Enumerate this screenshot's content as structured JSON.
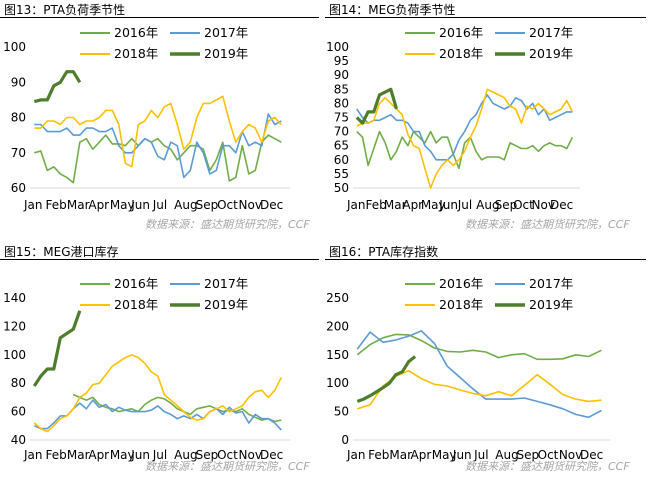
{
  "figures": [
    {
      "title": "图13：PTA负荷季节性",
      "source": "数据来源：盛达期货研究院，CCF"
    },
    {
      "title": "图14：MEG负荷季节性",
      "source": "数据来源：盛达期货研究院，CCF"
    },
    {
      "title": "图15：MEG港口库存",
      "source": "数据来源：盛达期货研究院，CCF"
    },
    {
      "title": "图16：PTA库存指数",
      "source": "数据来源：盛达期货研究院，CCF"
    }
  ],
  "colors": {
    "2016": "#70ad47",
    "2017": "#5b9bd5",
    "2018": "#ffc000",
    "2019": "#4e7d2c"
  },
  "chart_data": [
    {
      "type": "line",
      "title": "图13：PTA负荷季节性",
      "ylim": [
        60,
        100
      ],
      "yticks": [
        60,
        70,
        80,
        90,
        100
      ],
      "xlim": [
        0,
        12
      ],
      "x_categories": [
        "Jan",
        "Feb",
        "Mar",
        "Apr",
        "May",
        "Jun",
        "Jul",
        "Aug",
        "Sep",
        "Oct",
        "Nov",
        "Dec"
      ],
      "legend": "top",
      "series": [
        {
          "name": "2016年",
          "x": [
            0.2,
            0.5,
            0.8,
            1.1,
            1.4,
            1.7,
            2.0,
            2.3,
            2.6,
            2.9,
            3.2,
            3.5,
            3.8,
            4.1,
            4.4,
            4.7,
            5.0,
            5.3,
            5.6,
            5.9,
            6.2,
            6.5,
            6.8,
            7.1,
            7.4,
            7.7,
            8.0,
            8.3,
            8.6,
            8.9,
            9.2,
            9.5,
            9.8,
            10.1,
            10.4,
            10.7,
            11.0,
            11.3,
            11.6
          ],
          "y": [
            70,
            70.5,
            65,
            66,
            64,
            63,
            61.5,
            73,
            74,
            71,
            73,
            75,
            72.5,
            72.5,
            72,
            74,
            72,
            74,
            73,
            74,
            72,
            71,
            68,
            70,
            72,
            72,
            71,
            65,
            68,
            73,
            62,
            63,
            72,
            64,
            65,
            73,
            75,
            74,
            73
          ]
        },
        {
          "name": "2017年",
          "x": [
            0.2,
            0.5,
            0.8,
            1.1,
            1.4,
            1.7,
            2.0,
            2.3,
            2.6,
            2.9,
            3.2,
            3.5,
            3.8,
            4.1,
            4.4,
            4.7,
            5.0,
            5.3,
            5.6,
            5.9,
            6.2,
            6.5,
            6.8,
            7.1,
            7.4,
            7.7,
            8.0,
            8.3,
            8.6,
            8.9,
            9.2,
            9.5,
            9.8,
            10.1,
            10.4,
            10.7,
            11.0,
            11.3,
            11.6
          ],
          "y": [
            78,
            78,
            76,
            76,
            76,
            77,
            75,
            75,
            77,
            77,
            76,
            76,
            77,
            72,
            70,
            70,
            72,
            74,
            73,
            69,
            68,
            73,
            72,
            63,
            65,
            73,
            70,
            64,
            65,
            72,
            72,
            70,
            76,
            72,
            73,
            72,
            81,
            78,
            79
          ]
        },
        {
          "name": "2018年",
          "x": [
            0.2,
            0.5,
            0.8,
            1.1,
            1.4,
            1.7,
            2.0,
            2.3,
            2.6,
            2.9,
            3.2,
            3.5,
            3.8,
            4.1,
            4.4,
            4.7,
            5.0,
            5.3,
            5.6,
            5.9,
            6.2,
            6.5,
            6.8,
            7.1,
            7.4,
            7.7,
            8.0,
            8.3,
            8.6,
            8.9,
            9.2,
            9.5,
            9.8,
            10.1,
            10.4,
            10.7,
            11.0,
            11.3,
            11.6
          ],
          "y": [
            77,
            77,
            79,
            79,
            78,
            80,
            80,
            78,
            79,
            79,
            80,
            82,
            82,
            78,
            67,
            66,
            78,
            79,
            82,
            80,
            83,
            84,
            78,
            71,
            73,
            80,
            84,
            84,
            85,
            86,
            79,
            73,
            76,
            78,
            77,
            73,
            79,
            80,
            78
          ]
        },
        {
          "name": "2019年",
          "x": [
            0.2,
            0.5,
            0.8,
            1.1,
            1.4,
            1.7,
            2.0,
            2.3
          ],
          "y": [
            84.5,
            85,
            85,
            89,
            90,
            93,
            93,
            90
          ]
        }
      ]
    },
    {
      "type": "line",
      "title": "图14：MEG负荷季节性",
      "ylim": [
        50,
        100
      ],
      "yticks": [
        50,
        55,
        60,
        65,
        70,
        75,
        80,
        85,
        90,
        95,
        100
      ],
      "xlim": [
        0,
        12
      ],
      "x_categories": [
        "Jan",
        "Feb",
        "Mar",
        "Apr",
        "May",
        "Jun",
        "Jul",
        "Aug",
        "Sep",
        "Oct",
        "Nov",
        "Dec"
      ],
      "legend": "top",
      "series": [
        {
          "name": "2016年",
          "x": [
            0.2,
            0.5,
            0.8,
            1.1,
            1.4,
            1.7,
            2.0,
            2.3,
            2.6,
            2.9,
            3.2,
            3.5,
            3.8,
            4.1,
            4.4,
            4.7,
            5.0,
            5.3,
            5.6,
            5.9,
            6.2,
            6.5,
            6.8,
            7.1,
            7.4,
            7.7,
            8.0,
            8.3,
            8.6,
            8.9,
            9.2,
            9.5,
            9.8,
            10.1,
            10.4,
            10.7,
            11.0,
            11.3,
            11.6
          ],
          "y": [
            70,
            68,
            58,
            64,
            70,
            66,
            60,
            63,
            68,
            65,
            70,
            68,
            66,
            70,
            66,
            68,
            68,
            62,
            57,
            66,
            68,
            63,
            60,
            61,
            61,
            61,
            60,
            66,
            65,
            64,
            64,
            65,
            63,
            65,
            66,
            65,
            65,
            64,
            68
          ]
        },
        {
          "name": "2017年",
          "x": [
            0.2,
            0.5,
            0.8,
            1.1,
            1.4,
            1.7,
            2.0,
            2.3,
            2.6,
            2.9,
            3.2,
            3.5,
            3.8,
            4.1,
            4.4,
            4.7,
            5.0,
            5.3,
            5.6,
            5.9,
            6.2,
            6.5,
            6.8,
            7.1,
            7.4,
            7.7,
            8.0,
            8.3,
            8.6,
            8.9,
            9.2,
            9.5,
            9.8,
            10.1,
            10.4,
            10.7,
            11.0,
            11.3,
            11.6
          ],
          "y": [
            78,
            75,
            73,
            74,
            74,
            75,
            76,
            74,
            74,
            73,
            70,
            70,
            65,
            63,
            60,
            60,
            60,
            62,
            67,
            70,
            74,
            76,
            80,
            83,
            80,
            79,
            78,
            79,
            82,
            81,
            78,
            80,
            76,
            78,
            74,
            75,
            76,
            77,
            77
          ]
        },
        {
          "name": "2018年",
          "x": [
            0.2,
            0.5,
            0.8,
            1.1,
            1.4,
            1.7,
            2.0,
            2.3,
            2.6,
            2.9,
            3.2,
            3.5,
            3.8,
            4.1,
            4.4,
            4.7,
            5.0,
            5.3,
            5.6,
            5.9,
            6.2,
            6.5,
            6.8,
            7.1,
            7.4,
            7.7,
            8.0,
            8.3,
            8.6,
            8.9,
            9.2,
            9.5,
            9.8,
            10.1,
            10.4,
            10.7,
            11.0,
            11.3,
            11.6
          ],
          "y": [
            72,
            73,
            73,
            74,
            80,
            82,
            80,
            78,
            76,
            69,
            65,
            64,
            57,
            50,
            55,
            58,
            60,
            58,
            60,
            63,
            68,
            72,
            78,
            85,
            84,
            83,
            82,
            79,
            78,
            73,
            79,
            78,
            80,
            78,
            76,
            77,
            78,
            81,
            77
          ]
        },
        {
          "name": "2019年",
          "x": [
            0.2,
            0.5,
            0.8,
            1.1,
            1.4,
            1.7,
            2.0,
            2.3
          ],
          "y": [
            75,
            73,
            77,
            77,
            83,
            84,
            85,
            78
          ]
        }
      ]
    },
    {
      "type": "line",
      "title": "图15：MEG港口库存",
      "ylim": [
        40,
        140
      ],
      "yticks": [
        40,
        60,
        80,
        100,
        120,
        140
      ],
      "xlim": [
        0,
        12
      ],
      "x_categories": [
        "Jan",
        "Feb",
        "Mar",
        "Apr",
        "May",
        "Jun",
        "Jul",
        "Aug",
        "Sep",
        "Oct",
        "Nov",
        "Dec"
      ],
      "legend": "top",
      "series": [
        {
          "name": "2016年",
          "x": [
            2.0,
            2.3,
            2.6,
            2.9,
            3.2,
            3.5,
            3.8,
            4.1,
            4.4,
            4.7,
            5.0,
            5.3,
            5.6,
            5.9,
            6.2,
            6.5,
            6.8,
            7.1,
            7.4,
            7.7,
            8.0,
            8.3,
            8.6,
            8.9,
            9.2,
            9.5,
            9.8,
            10.1,
            10.4,
            10.7,
            11.0,
            11.3,
            11.6
          ],
          "y": [
            72,
            70,
            68,
            70,
            65,
            63,
            62,
            60,
            61,
            62,
            60,
            65,
            68,
            70,
            69,
            66,
            62,
            60,
            58,
            62,
            63,
            64,
            62,
            60,
            61,
            60,
            62,
            58,
            56,
            54,
            55,
            53,
            54
          ]
        },
        {
          "name": "2017年",
          "x": [
            0.2,
            0.5,
            0.8,
            1.1,
            1.4,
            1.7,
            2.0,
            2.3,
            2.6,
            2.9,
            3.2,
            3.5,
            3.8,
            4.1,
            4.4,
            4.7,
            5.0,
            5.3,
            5.6,
            5.9,
            6.2,
            6.5,
            6.8,
            7.1,
            7.4,
            7.7,
            8.0,
            8.3,
            8.6,
            8.9,
            9.2,
            9.5,
            9.8,
            10.1,
            10.4,
            10.7,
            11.0,
            11.3,
            11.6
          ],
          "y": [
            50,
            48,
            48,
            52,
            57,
            57,
            62,
            66,
            62,
            68,
            63,
            65,
            60,
            63,
            61,
            60,
            60,
            60,
            61,
            64,
            60,
            58,
            55,
            57,
            55,
            58,
            55,
            60,
            62,
            58,
            63,
            59,
            60,
            52,
            58,
            55,
            55,
            52,
            47
          ]
        },
        {
          "name": "2018年",
          "x": [
            0.2,
            0.5,
            0.8,
            1.1,
            1.4,
            1.7,
            2.0,
            2.3,
            2.6,
            2.9,
            3.2,
            3.5,
            3.8,
            4.1,
            4.4,
            4.7,
            5.0,
            5.3,
            5.6,
            5.9,
            6.2,
            6.5,
            6.8,
            7.1,
            7.4,
            7.7,
            8.0,
            8.3,
            8.6,
            8.9,
            9.2,
            9.5,
            9.8,
            10.1,
            10.4,
            10.7,
            11.0,
            11.3,
            11.6
          ],
          "y": [
            52,
            48,
            46,
            50,
            55,
            57,
            62,
            70,
            73,
            79,
            80,
            86,
            92,
            95,
            98,
            100,
            98,
            94,
            88,
            85,
            72,
            68,
            64,
            60,
            56,
            54,
            55,
            60,
            62,
            64,
            60,
            62,
            64,
            70,
            74,
            75,
            70,
            75,
            84
          ]
        },
        {
          "name": "2019年",
          "x": [
            0.2,
            0.5,
            0.8,
            1.1,
            1.4,
            1.7,
            2.0,
            2.3
          ],
          "y": [
            78,
            85,
            90,
            90,
            112,
            115,
            118,
            131
          ]
        }
      ]
    },
    {
      "type": "line",
      "title": "图16：PTA库存指数",
      "ylim": [
        0,
        250
      ],
      "yticks": [
        0,
        50,
        100,
        150,
        200,
        250
      ],
      "xlim": [
        0,
        12
      ],
      "x_categories": [
        "Jan",
        "Feb",
        "Mar",
        "Apr",
        "May",
        "Jun",
        "Jul",
        "Aug",
        "Sep",
        "Oct",
        "Nov",
        "Dec"
      ],
      "legend": "top",
      "series": [
        {
          "name": "2016年",
          "x": [
            0.2,
            0.8,
            1.4,
            2.0,
            2.6,
            3.2,
            3.8,
            4.4,
            5.0,
            5.6,
            6.2,
            6.8,
            7.4,
            8.0,
            8.6,
            9.2,
            9.8,
            10.4,
            11.0,
            11.6
          ],
          "y": [
            150,
            168,
            180,
            186,
            185,
            175,
            162,
            156,
            155,
            158,
            155,
            145,
            150,
            152,
            142,
            142,
            143,
            150,
            147,
            158
          ]
        },
        {
          "name": "2017年",
          "x": [
            0.2,
            0.8,
            1.4,
            2.0,
            2.6,
            3.2,
            3.8,
            4.4,
            5.0,
            5.6,
            6.2,
            6.8,
            7.4,
            8.0,
            8.6,
            9.2,
            9.8,
            10.4,
            11.0,
            11.6
          ],
          "y": [
            160,
            190,
            172,
            176,
            183,
            192,
            170,
            130,
            110,
            90,
            72,
            72,
            72,
            74,
            68,
            62,
            55,
            45,
            40,
            52
          ]
        },
        {
          "name": "2018年",
          "x": [
            0.2,
            0.8,
            1.4,
            2.0,
            2.6,
            3.2,
            3.8,
            4.4,
            5.0,
            5.6,
            6.2,
            6.8,
            7.4,
            8.0,
            8.6,
            9.2,
            9.8,
            10.4,
            11.0,
            11.6
          ],
          "y": [
            55,
            62,
            95,
            112,
            122,
            108,
            98,
            95,
            88,
            82,
            78,
            85,
            78,
            96,
            115,
            98,
            80,
            72,
            68,
            70
          ]
        },
        {
          "name": "2019年",
          "x": [
            0.2,
            0.5,
            0.8,
            1.1,
            1.4,
            1.7,
            2.0,
            2.3,
            2.6,
            2.9
          ],
          "y": [
            68,
            72,
            78,
            85,
            92,
            100,
            115,
            120,
            138,
            147
          ]
        }
      ]
    }
  ]
}
